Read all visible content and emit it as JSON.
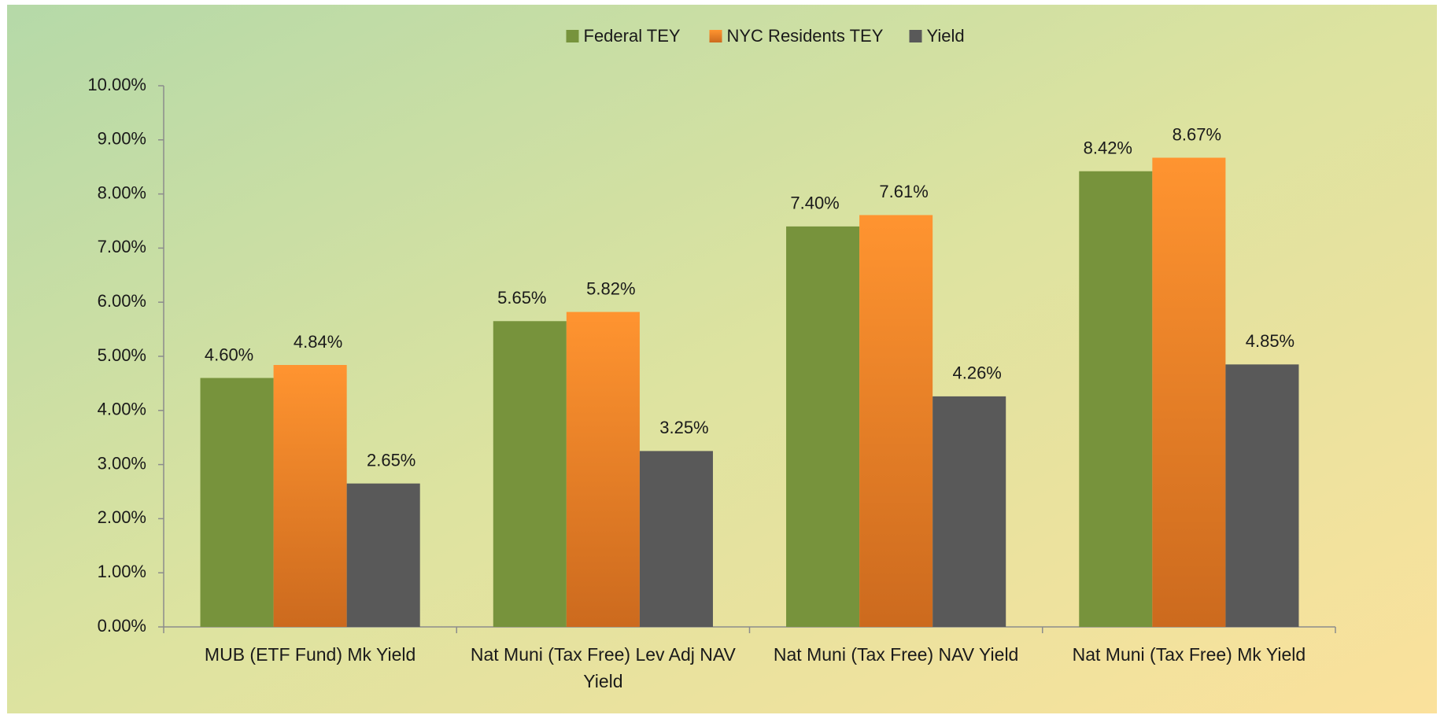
{
  "chart_data": {
    "type": "bar",
    "categories": [
      "MUB (ETF Fund) Mk Yield",
      "Nat Muni (Tax Free) Lev Adj NAV Yield",
      "Nat Muni (Tax Free) NAV Yield",
      "Nat Muni (Tax Free) Mk Yield"
    ],
    "series": [
      {
        "name": "Federal TEY",
        "color": "#77933c",
        "values": [
          4.6,
          5.65,
          7.4,
          8.42
        ],
        "value_labels": [
          "4.60%",
          "5.65%",
          "7.40%",
          "8.42%"
        ]
      },
      {
        "name": "NYC Residents TEY",
        "color": "#f58a24",
        "values": [
          4.84,
          5.82,
          7.61,
          8.67
        ],
        "value_labels": [
          "4.84%",
          "5.82%",
          "7.61%",
          "8.67%"
        ]
      },
      {
        "name": "Yield",
        "color": "#595959",
        "values": [
          2.65,
          3.25,
          4.26,
          4.85
        ],
        "value_labels": [
          "2.65%",
          "3.25%",
          "4.26%",
          "4.85%"
        ]
      }
    ],
    "ylim": [
      0,
      10
    ],
    "yticks": [
      {
        "value": 0,
        "label": "0.00%"
      },
      {
        "value": 1,
        "label": "1.00%"
      },
      {
        "value": 2,
        "label": "2.00%"
      },
      {
        "value": 3,
        "label": "3.00%"
      },
      {
        "value": 4,
        "label": "4.00%"
      },
      {
        "value": 5,
        "label": "5.00%"
      },
      {
        "value": 6,
        "label": "6.00%"
      },
      {
        "value": 7,
        "label": "7.00%"
      },
      {
        "value": 8,
        "label": "8.00%"
      },
      {
        "value": 9,
        "label": "9.00%"
      },
      {
        "value": 10,
        "label": "10.00%"
      }
    ],
    "grid": false,
    "legend": "top"
  }
}
